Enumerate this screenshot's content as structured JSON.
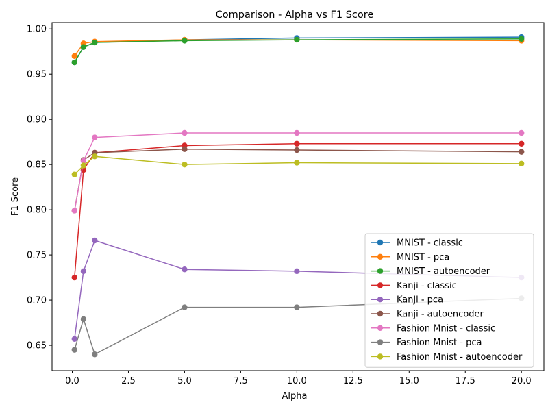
{
  "chart_data": {
    "type": "line",
    "title": "Comparison - Alpha vs F1 Score",
    "xlabel": "Alpha",
    "ylabel": "F1 Score",
    "xlim": [
      -0.9,
      21.0
    ],
    "ylim": [
      0.622,
      1.007
    ],
    "xticks": [
      0.0,
      2.5,
      5.0,
      7.5,
      10.0,
      12.5,
      15.0,
      17.5,
      20.0
    ],
    "xtick_labels": [
      "0.0",
      "2.5",
      "5.0",
      "7.5",
      "10.0",
      "12.5",
      "15.0",
      "17.5",
      "20.0"
    ],
    "yticks": [
      0.65,
      0.7,
      0.75,
      0.8,
      0.85,
      0.9,
      0.95,
      1.0
    ],
    "ytick_labels": [
      "0.65",
      "0.70",
      "0.75",
      "0.80",
      "0.85",
      "0.90",
      "0.95",
      "1.00"
    ],
    "legend_position": "lower-right",
    "grid": false,
    "x": [
      0.1,
      0.5,
      1,
      5,
      10,
      20
    ],
    "series": [
      {
        "name": "MNIST - classic",
        "color": "#1f77b4",
        "values": [
          0.963,
          0.98,
          0.985,
          0.988,
          0.99,
          0.991
        ]
      },
      {
        "name": "MNIST - pca",
        "color": "#ff7f0e",
        "values": [
          0.97,
          0.984,
          0.986,
          0.988,
          0.988,
          0.987
        ]
      },
      {
        "name": "MNIST - autoencoder",
        "color": "#2ca02c",
        "values": [
          0.963,
          0.98,
          0.985,
          0.987,
          0.988,
          0.989
        ]
      },
      {
        "name": "Kanji - classic",
        "color": "#d62728",
        "values": [
          0.725,
          0.844,
          0.863,
          0.871,
          0.873,
          0.873
        ]
      },
      {
        "name": "Kanji - pca",
        "color": "#9467bd",
        "values": [
          0.657,
          0.732,
          0.766,
          0.734,
          0.732,
          0.725
        ]
      },
      {
        "name": "Kanji - autoencoder",
        "color": "#8c564b",
        "values": [
          0.799,
          0.855,
          0.863,
          0.867,
          0.866,
          0.864
        ]
      },
      {
        "name": "Fashion Mnist - classic",
        "color": "#e377c2",
        "values": [
          0.799,
          0.854,
          0.88,
          0.885,
          0.885,
          0.885
        ]
      },
      {
        "name": "Fashion Mnist - pca",
        "color": "#7f7f7f",
        "values": [
          0.645,
          0.679,
          0.64,
          0.692,
          0.692,
          0.702
        ]
      },
      {
        "name": "Fashion Mnist - autoencoder",
        "color": "#bcbd22",
        "values": [
          0.839,
          0.849,
          0.859,
          0.85,
          0.852,
          0.851
        ]
      }
    ]
  }
}
